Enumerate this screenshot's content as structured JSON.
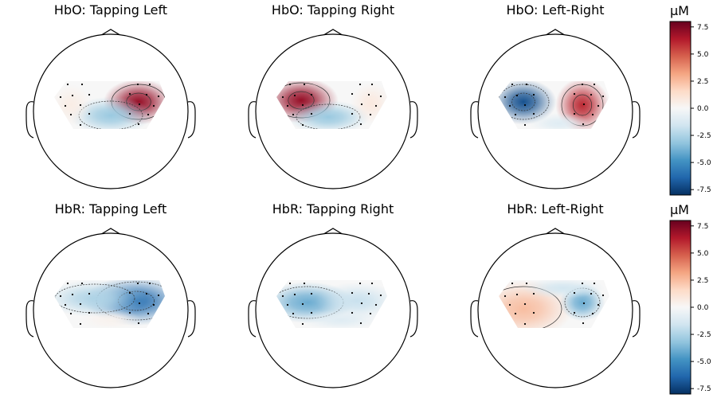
{
  "chart_data": {
    "type": "heatmap",
    "subtype": "topomap",
    "colormap": "RdBu_r",
    "clim": [
      -8,
      8
    ],
    "colorbar": {
      "unit": "µM",
      "ticks": [
        "7.5",
        "5.0",
        "2.5",
        "0.0",
        "-2.5",
        "-5.0",
        "-7.5"
      ],
      "tick_values": [
        7.5,
        5.0,
        2.5,
        0.0,
        -2.5,
        -5.0,
        -7.5
      ]
    },
    "panels": [
      {
        "title": "HbO: Tapping Left",
        "peak_max": 7,
        "peak_min": -3
      },
      {
        "title": "HbO: Tapping Right",
        "peak_max": 7,
        "peak_min": -3
      },
      {
        "title": "HbO: Left-Right",
        "peak_max": 6,
        "peak_min": -7
      },
      {
        "title": "HbR: Tapping Left",
        "peak_max": 0,
        "peak_min": -6
      },
      {
        "title": "HbR: Tapping Right",
        "peak_max": 0,
        "peak_min": -4
      },
      {
        "title": "HbR: Left-Right",
        "peak_max": 2.5,
        "peak_min": -4
      }
    ]
  }
}
